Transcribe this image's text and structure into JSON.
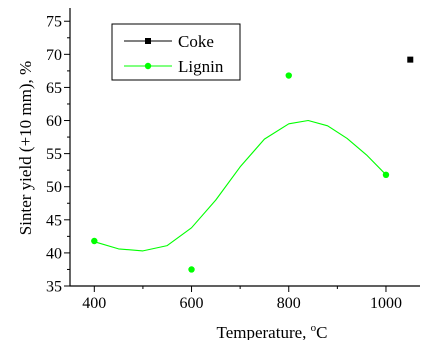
{
  "chart_data": {
    "type": "scatter",
    "xlabel": "Temperature, °C",
    "xlabel_main": "Temperature, ",
    "xlabel_sup": "o",
    "xlabel_unit": "C",
    "ylabel": "Sinter yield (+10 mm), %",
    "xlim": [
      350,
      1070
    ],
    "ylim": [
      35,
      77
    ],
    "x_ticks": [
      400,
      600,
      800,
      1000
    ],
    "y_ticks": [
      35,
      40,
      45,
      50,
      55,
      60,
      65,
      70,
      75
    ],
    "grid": false,
    "legend_position": "top-left",
    "series": [
      {
        "name": "Coke",
        "marker": "square",
        "color": "#000000",
        "points": [
          {
            "x": 1050,
            "y": 69.2
          }
        ]
      },
      {
        "name": "Lignin",
        "marker": "circle",
        "color": "#00ff00",
        "points": [
          {
            "x": 400,
            "y": 41.8
          },
          {
            "x": 600,
            "y": 37.5
          },
          {
            "x": 800,
            "y": 66.8
          },
          {
            "x": 1000,
            "y": 51.8
          }
        ],
        "trend": [
          {
            "x": 400,
            "y": 41.7
          },
          {
            "x": 450,
            "y": 40.6
          },
          {
            "x": 500,
            "y": 40.3
          },
          {
            "x": 550,
            "y": 41.1
          },
          {
            "x": 600,
            "y": 43.8
          },
          {
            "x": 650,
            "y": 48.0
          },
          {
            "x": 700,
            "y": 53.0
          },
          {
            "x": 750,
            "y": 57.2
          },
          {
            "x": 800,
            "y": 59.5
          },
          {
            "x": 840,
            "y": 60.0
          },
          {
            "x": 880,
            "y": 59.2
          },
          {
            "x": 920,
            "y": 57.3
          },
          {
            "x": 960,
            "y": 54.8
          },
          {
            "x": 1000,
            "y": 51.8
          }
        ]
      }
    ]
  }
}
